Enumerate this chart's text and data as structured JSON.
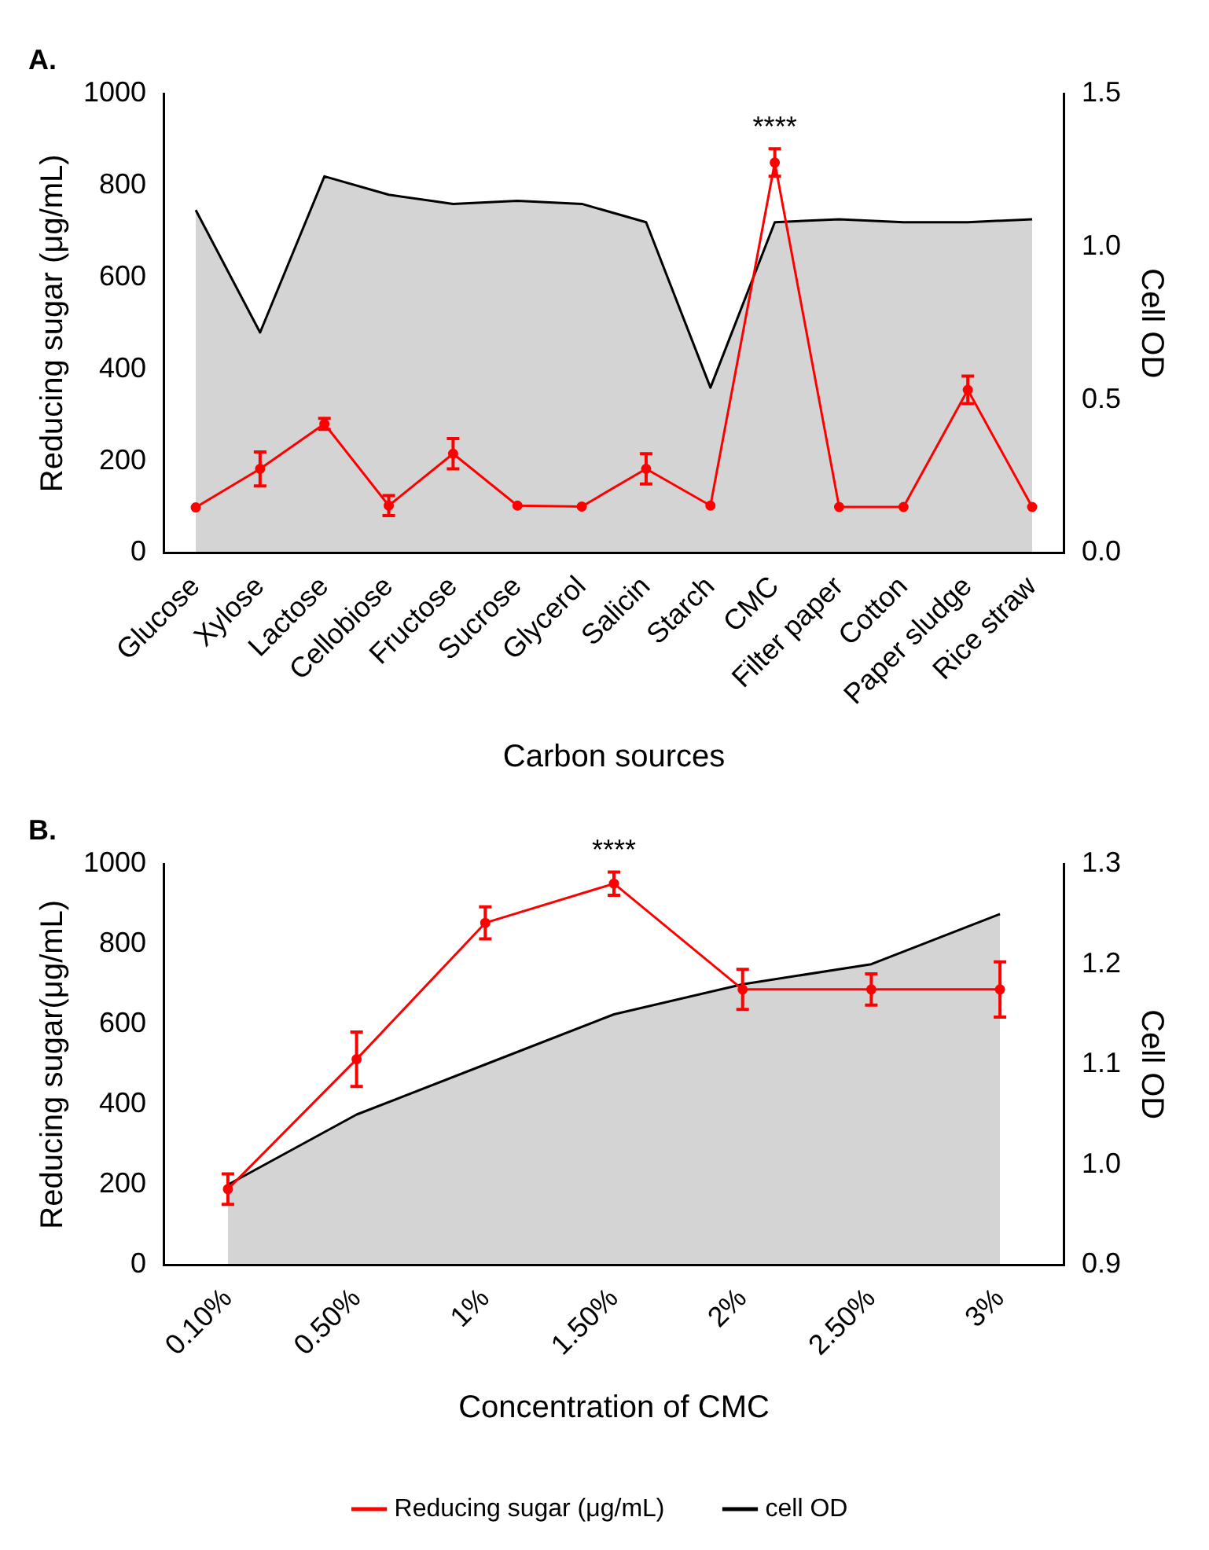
{
  "chart_data": [
    {
      "type": "line",
      "title": "A.",
      "xlabel": "Carbon sources",
      "ylabel": "Reducing sugar (μg/mL)",
      "y2label": "Cell OD",
      "categories": [
        "Glucose",
        "Xylose",
        "Lactose",
        "Cellobiose",
        "Fructose",
        "Sucrose",
        "Glycerol",
        "Salicin",
        "Starch",
        "CMC",
        "Filter paper",
        "Cotton",
        "Paper sludge",
        "Rice straw"
      ],
      "series": [
        {
          "type": "area",
          "axis": "y2",
          "color": "#000000",
          "marker": "none",
          "values": [
            1.12,
            0.72,
            1.23,
            1.17,
            1.14,
            1.15,
            1.14,
            1.08,
            0.54,
            1.08,
            1.09,
            1.08,
            1.08,
            1.09
          ]
        },
        {
          "color": "#ff0000",
          "marker": "circle",
          "values": [
            99,
            183,
            281,
            103,
            216,
            103,
            101,
            183,
            103,
            850,
            100,
            100,
            355,
            100
          ],
          "errors": [
            null,
            37,
            12,
            22,
            33,
            null,
            null,
            33,
            null,
            30,
            null,
            null,
            30,
            null
          ]
        }
      ],
      "ylim": [
        0,
        1000
      ],
      "yticks": [
        0,
        200,
        400,
        600,
        800,
        1000
      ],
      "y2lim": [
        0,
        1.5
      ],
      "y2ticks": [
        {
          "value": 0,
          "label": "0.0"
        },
        {
          "value": 0.5,
          "label": "0.5"
        },
        {
          "value": 1,
          "label": "1.0"
        },
        {
          "value": 1.5,
          "label": "1.5"
        }
      ],
      "annotations": [
        {
          "text": "****",
          "x": "CMC",
          "y": 880
        }
      ],
      "grid": false,
      "legend": false
    },
    {
      "type": "line",
      "title": "B.",
      "xlabel": "Concentration of CMC",
      "ylabel": "Reducing sugar(μg/mL)",
      "y2label": "Cell OD",
      "categories": [
        "0.10%",
        "0.50%",
        "1%",
        "1.50%",
        "2%",
        "2.50%",
        "3%"
      ],
      "series": [
        {
          "name": "Reducing sugar (μg/mL)",
          "color": "#ff0000",
          "marker": "circle",
          "values": [
            189,
            513,
            853,
            951,
            687,
            687,
            687
          ],
          "errors": [
            38,
            68,
            40,
            29,
            50,
            39,
            69
          ]
        },
        {
          "type": "area",
          "name": "cell OD",
          "axis": "y2",
          "color": "#000000",
          "marker": "none",
          "values": [
            0.98,
            1.05,
            1.1,
            1.15,
            1.18,
            1.2,
            1.25
          ]
        }
      ],
      "ylim": [
        0,
        1000
      ],
      "yticks": [
        0,
        200,
        400,
        600,
        800,
        1000
      ],
      "y2lim": [
        0.9,
        1.3
      ],
      "y2ticks": [
        0.9,
        {
          "value": 1,
          "label": "1.0"
        },
        1.1,
        1.2,
        1.3
      ],
      "annotations": [
        {
          "text": "****",
          "x": "1.50%",
          "y": 980
        }
      ],
      "grid": false,
      "legend": "bottom"
    }
  ]
}
